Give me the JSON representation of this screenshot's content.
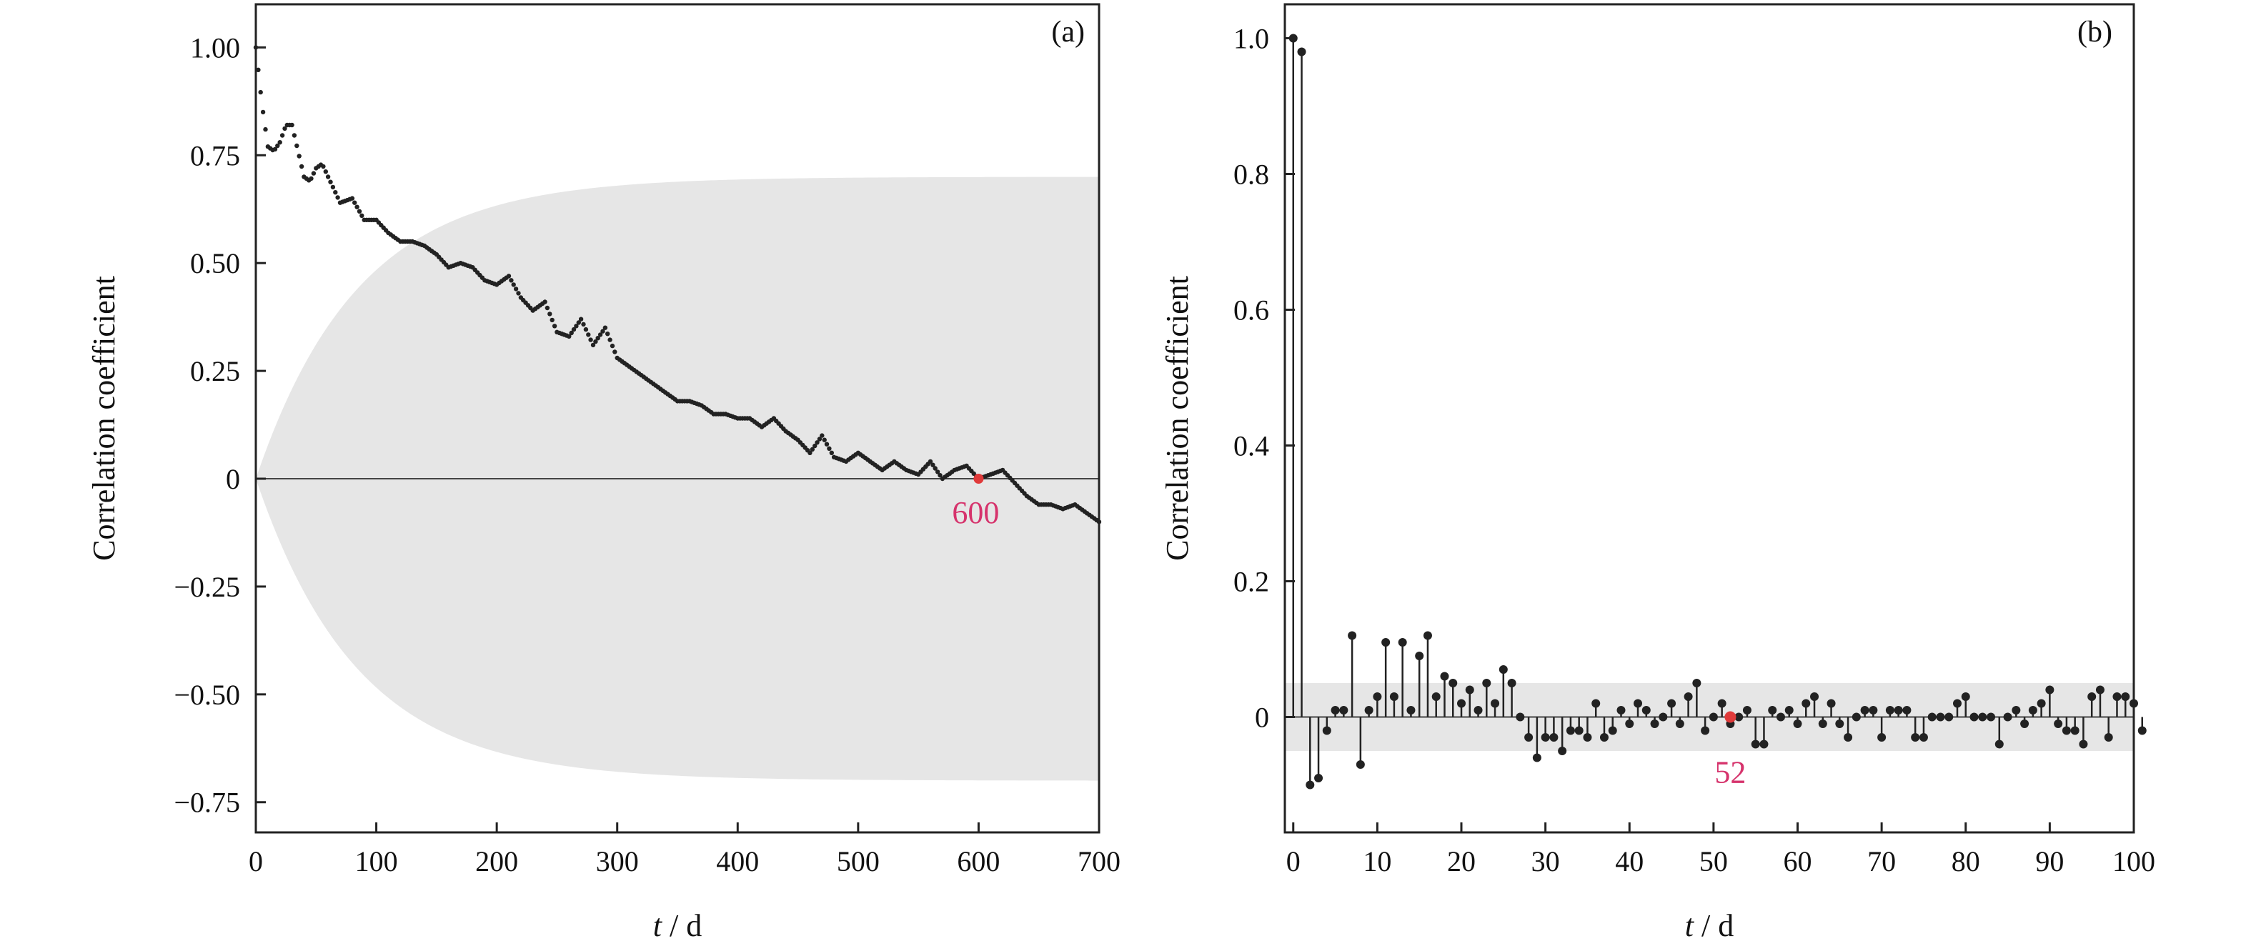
{
  "chart_data": [
    {
      "panel": "(a)",
      "type": "scatter",
      "xlabel_italic": "t",
      "xlabel_unit": " / d",
      "ylabel": "Correlation coefficient",
      "xlim": [
        0,
        700
      ],
      "ylim": [
        -0.82,
        1.1
      ],
      "xticks": [
        0,
        100,
        200,
        300,
        400,
        500,
        600,
        700
      ],
      "xtick_labels": [
        "0",
        "100",
        "200",
        "300",
        "400",
        "500",
        "600",
        "700"
      ],
      "yticks": [
        -0.75,
        -0.5,
        -0.25,
        0,
        0.25,
        0.5,
        0.75,
        1.0
      ],
      "ytick_labels": [
        "−0.75",
        "−0.50",
        "−0.25",
        "0",
        "0.25",
        "0.50",
        "0.75",
        "1.00"
      ],
      "grid": false,
      "series_color": "#222222",
      "band_color": "#e6e6e6",
      "band_max": 0.7,
      "acf_x": [
        0,
        5,
        10,
        15,
        20,
        25,
        30,
        35,
        40,
        45,
        50,
        55,
        60,
        70,
        80,
        90,
        100,
        110,
        120,
        130,
        140,
        150,
        160,
        170,
        180,
        190,
        200,
        210,
        220,
        230,
        240,
        250,
        260,
        270,
        280,
        290,
        300,
        310,
        320,
        330,
        340,
        350,
        360,
        370,
        380,
        390,
        400,
        410,
        420,
        430,
        440,
        450,
        460,
        470,
        480,
        490,
        500,
        510,
        520,
        530,
        540,
        550,
        560,
        570,
        580,
        590,
        600,
        610,
        620,
        630,
        640,
        650,
        660,
        670,
        680,
        690,
        700
      ],
      "acf_y": [
        1.0,
        0.87,
        0.77,
        0.76,
        0.78,
        0.82,
        0.82,
        0.76,
        0.7,
        0.69,
        0.72,
        0.73,
        0.7,
        0.64,
        0.65,
        0.6,
        0.6,
        0.57,
        0.55,
        0.55,
        0.54,
        0.52,
        0.49,
        0.5,
        0.49,
        0.46,
        0.45,
        0.47,
        0.42,
        0.39,
        0.41,
        0.34,
        0.33,
        0.37,
        0.31,
        0.35,
        0.28,
        0.26,
        0.24,
        0.22,
        0.2,
        0.18,
        0.18,
        0.17,
        0.15,
        0.15,
        0.14,
        0.14,
        0.12,
        0.14,
        0.11,
        0.09,
        0.06,
        0.1,
        0.05,
        0.04,
        0.06,
        0.04,
        0.02,
        0.04,
        0.02,
        0.01,
        0.04,
        0.0,
        0.02,
        0.03,
        0.0,
        0.01,
        0.02,
        -0.01,
        -0.04,
        -0.06,
        -0.06,
        -0.07,
        -0.06,
        -0.08,
        -0.1
      ],
      "highlight": {
        "x": 600,
        "y": 0.0,
        "label": "600",
        "color": "#e03a3a"
      }
    },
    {
      "panel": "(b)",
      "type": "stem",
      "xlabel_italic": "t",
      "xlabel_unit": " / d",
      "ylabel": "Correlation coefficient",
      "xlim": [
        -1,
        100
      ],
      "ylim": [
        -0.17,
        1.05
      ],
      "xticks": [
        0,
        10,
        20,
        30,
        40,
        50,
        60,
        70,
        80,
        90,
        100
      ],
      "xtick_labels": [
        "0",
        "10",
        "20",
        "30",
        "40",
        "50",
        "60",
        "70",
        "80",
        "90",
        "100"
      ],
      "yticks": [
        0,
        0.2,
        0.4,
        0.6,
        0.8,
        1.0
      ],
      "ytick_labels": [
        "0",
        "0.2",
        "0.4",
        "0.6",
        "0.8",
        "1.0"
      ],
      "grid": false,
      "series_color": "#222222",
      "band": [
        -0.05,
        0.05
      ],
      "band_color": "#e6e6e6",
      "pacf": [
        1.0,
        0.98,
        -0.1,
        -0.09,
        -0.02,
        0.01,
        0.01,
        0.12,
        -0.07,
        0.01,
        0.03,
        0.11,
        0.03,
        0.11,
        0.01,
        0.09,
        0.12,
        0.03,
        0.06,
        0.05,
        0.02,
        0.04,
        0.01,
        0.05,
        0.02,
        0.07,
        0.05,
        0.0,
        -0.03,
        -0.06,
        -0.03,
        -0.03,
        -0.05,
        -0.02,
        -0.02,
        -0.03,
        0.02,
        -0.03,
        -0.02,
        0.01,
        -0.01,
        0.02,
        0.01,
        -0.01,
        0.0,
        0.02,
        -0.01,
        0.03,
        0.05,
        -0.02,
        0.0,
        0.02,
        -0.01,
        0.0,
        0.01,
        -0.04,
        -0.04,
        0.01,
        0.0,
        0.01,
        -0.01,
        0.02,
        0.03,
        -0.01,
        0.02,
        -0.01,
        -0.03,
        0.0,
        0.01,
        0.01,
        -0.03,
        0.01,
        0.01,
        0.01,
        -0.03,
        -0.03,
        0.0,
        0.0,
        0.0,
        0.02,
        0.03,
        0.0,
        0.0,
        0.0,
        -0.04,
        0.0,
        0.01,
        -0.01,
        0.01,
        0.02,
        0.04,
        -0.01,
        -0.02,
        -0.02,
        -0.04,
        0.03,
        0.04,
        -0.03,
        0.03,
        0.03,
        0.02,
        -0.02
      ],
      "highlight": {
        "x": 52,
        "y": 0.0,
        "label": "52",
        "color": "#e03a3a"
      }
    }
  ]
}
